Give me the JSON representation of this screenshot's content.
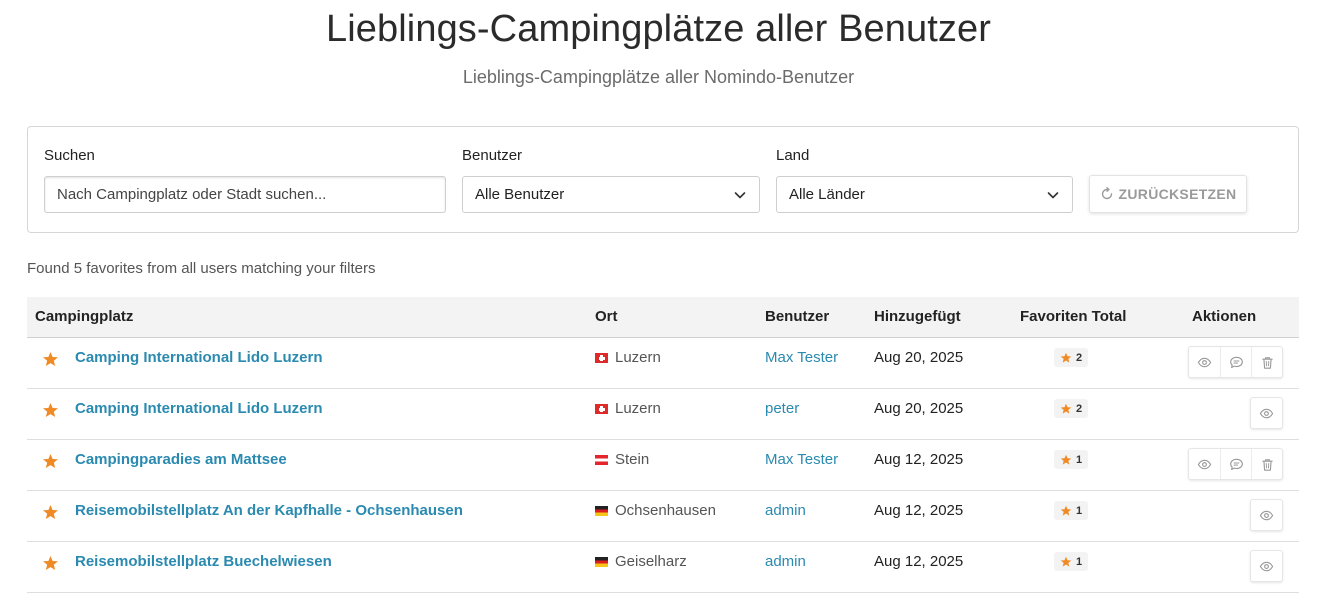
{
  "header": {
    "title": "Lieblings-Campingplätze aller Benutzer",
    "subtitle": "Lieblings-Campingplätze aller Nomindo-Benutzer"
  },
  "filters": {
    "search_label": "Suchen",
    "search_placeholder": "Nach Campingplatz oder Stadt suchen...",
    "search_value": "",
    "user_label": "Benutzer",
    "user_selected": "Alle Benutzer",
    "country_label": "Land",
    "country_selected": "Alle Länder",
    "reset_label": "ZURÜCKSETZEN"
  },
  "result_count": "Found 5 favorites from all users matching your filters",
  "table": {
    "headers": {
      "campground": "Campingplatz",
      "location": "Ort",
      "user": "Benutzer",
      "added": "Hinzugefügt",
      "favorites_total": "Favoriten Total",
      "actions": "Aktionen"
    },
    "rows": [
      {
        "name": "Camping International Lido Luzern",
        "flag": "ch",
        "city": "Luzern",
        "user": "Max Tester",
        "date": "Aug 20, 2025",
        "favorites": "2",
        "actions": [
          "view",
          "comment",
          "delete"
        ]
      },
      {
        "name": "Camping International Lido Luzern",
        "flag": "ch",
        "city": "Luzern",
        "user": "peter",
        "date": "Aug 20, 2025",
        "favorites": "2",
        "actions": [
          "view"
        ]
      },
      {
        "name": "Campingparadies am Mattsee",
        "flag": "at",
        "city": "Stein",
        "user": "Max Tester",
        "date": "Aug 12, 2025",
        "favorites": "1",
        "actions": [
          "view",
          "comment",
          "delete"
        ]
      },
      {
        "name": "Reisemobilstellplatz An der Kapfhalle - Ochsenhausen",
        "flag": "de",
        "city": "Ochsenhausen",
        "user": "admin",
        "date": "Aug 12, 2025",
        "favorites": "1",
        "actions": [
          "view"
        ]
      },
      {
        "name": "Reisemobilstellplatz Buechelwiesen",
        "flag": "de",
        "city": "Geiselharz",
        "user": "admin",
        "date": "Aug 12, 2025",
        "favorites": "1",
        "actions": [
          "view"
        ]
      }
    ]
  },
  "colors": {
    "link": "#2a8ab0",
    "star": "#f08a24",
    "muted": "#9a9a9a"
  },
  "icons": {
    "row_star": "star-icon",
    "view": "eye-icon",
    "comment": "comment-icon",
    "delete": "trash-icon",
    "reset": "refresh-icon",
    "dropdown": "chevron-down-icon"
  }
}
